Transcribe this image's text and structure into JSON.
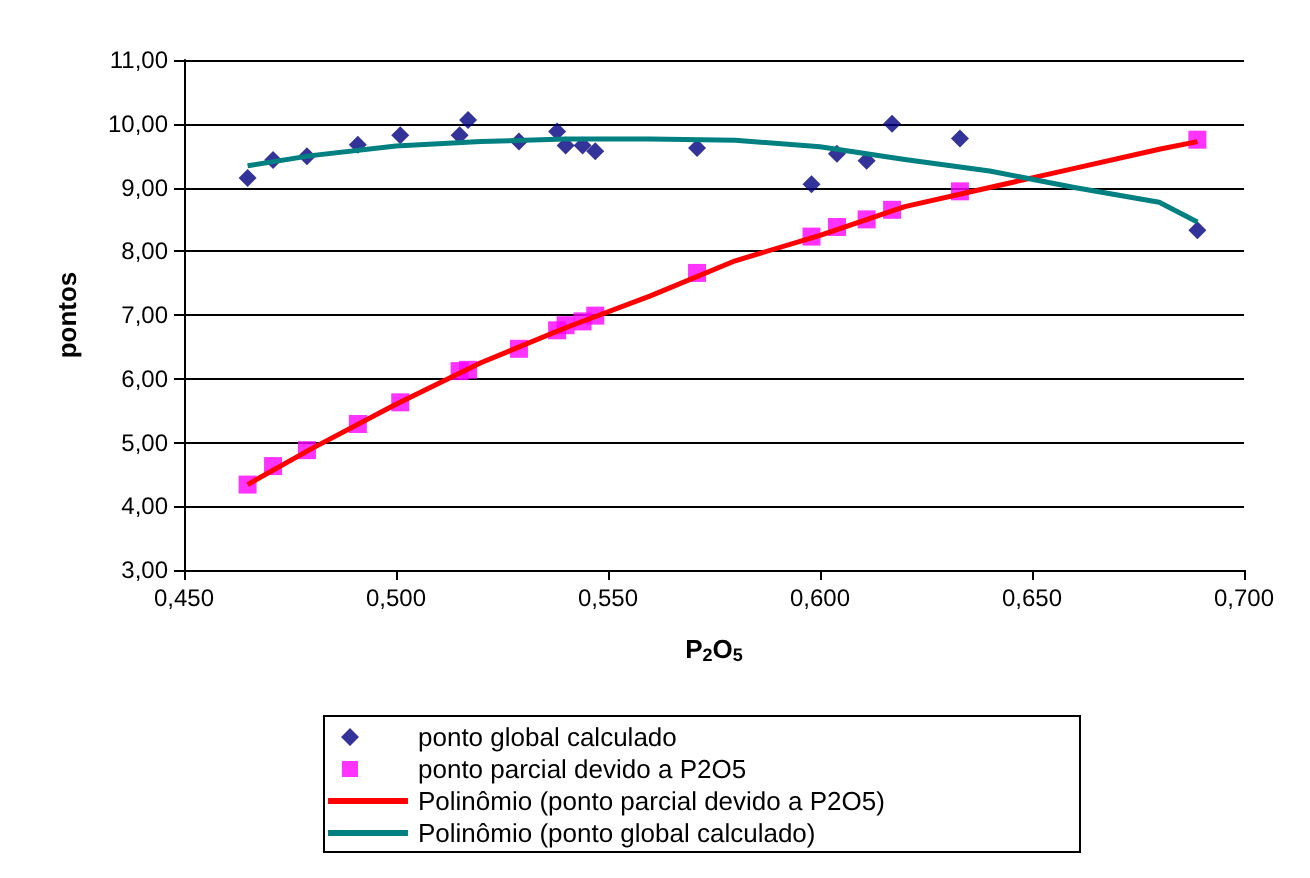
{
  "chart_data": {
    "type": "scatter",
    "xlabel": "P$_{2}$O$_{5}$",
    "ylabel": "pontos",
    "xlim": [
      0.45,
      0.7
    ],
    "xticks": [
      {
        "value": 0.45,
        "label": "0,450"
      },
      {
        "value": 0.5,
        "label": "0,500"
      },
      {
        "value": 0.55,
        "label": "0,550"
      },
      {
        "value": 0.6,
        "label": "0,600"
      },
      {
        "value": 0.65,
        "label": "0,650"
      },
      {
        "value": 0.7,
        "label": "0,700"
      }
    ],
    "ylim": [
      3,
      11
    ],
    "yticks": [
      {
        "value": 3,
        "label": "3,00"
      },
      {
        "value": 4,
        "label": "4,00"
      },
      {
        "value": 5,
        "label": "5,00"
      },
      {
        "value": 6,
        "label": "6,00"
      },
      {
        "value": 7,
        "label": "7,00"
      },
      {
        "value": 8,
        "label": "8,00"
      },
      {
        "value": 9,
        "label": "9,00"
      },
      {
        "value": 10,
        "label": "10,00"
      },
      {
        "value": 11,
        "label": "11,00"
      }
    ],
    "grid": "y",
    "legend": "bottom",
    "series": [
      {
        "name": "ponto global calculado",
        "type": "scatter",
        "marker": "diamond",
        "color": "#000080",
        "x": [
          0.465,
          0.471,
          0.479,
          0.491,
          0.501,
          0.515,
          0.517,
          0.529,
          0.538,
          0.54,
          0.544,
          0.547,
          0.571,
          0.598,
          0.604,
          0.611,
          0.617,
          0.633,
          0.689
        ],
        "values": [
          9.15,
          9.43,
          9.49,
          9.67,
          9.82,
          9.82,
          10.06,
          9.72,
          9.88,
          9.66,
          9.66,
          9.57,
          9.62,
          9.05,
          9.53,
          9.42,
          10.0,
          9.77,
          8.33
        ]
      },
      {
        "name": "ponto parcial devido a P2O5",
        "type": "scatter",
        "marker": "square",
        "color": "#ff00ff",
        "x": [
          0.465,
          0.471,
          0.479,
          0.491,
          0.501,
          0.515,
          0.517,
          0.529,
          0.538,
          0.54,
          0.544,
          0.547,
          0.571,
          0.598,
          0.604,
          0.611,
          0.617,
          0.633,
          0.689
        ],
        "values": [
          4.34,
          4.63,
          4.88,
          5.29,
          5.63,
          6.12,
          6.14,
          6.47,
          6.76,
          6.84,
          6.9,
          6.99,
          7.66,
          8.23,
          8.38,
          8.5,
          8.65,
          8.94,
          9.75
        ]
      },
      {
        "name": "Polinômio (ponto parcial devido a P2O5)",
        "type": "line",
        "marker": "none",
        "color": "#ff0000",
        "x": [
          0.465,
          0.48,
          0.5,
          0.52,
          0.54,
          0.56,
          0.58,
          0.6,
          0.62,
          0.64,
          0.66,
          0.68,
          0.689
        ],
        "values": [
          4.34,
          4.9,
          5.6,
          6.25,
          6.8,
          7.3,
          7.85,
          8.25,
          8.7,
          9.0,
          9.3,
          9.6,
          9.72
        ]
      },
      {
        "name": "Polinômio (ponto global calculado)",
        "type": "line",
        "marker": "none",
        "color": "#008080",
        "x": [
          0.465,
          0.48,
          0.5,
          0.52,
          0.54,
          0.56,
          0.58,
          0.6,
          0.62,
          0.64,
          0.66,
          0.68,
          0.689
        ],
        "values": [
          9.34,
          9.5,
          9.65,
          9.72,
          9.76,
          9.76,
          9.74,
          9.64,
          9.44,
          9.26,
          9.0,
          8.77,
          8.46
        ]
      }
    ]
  }
}
